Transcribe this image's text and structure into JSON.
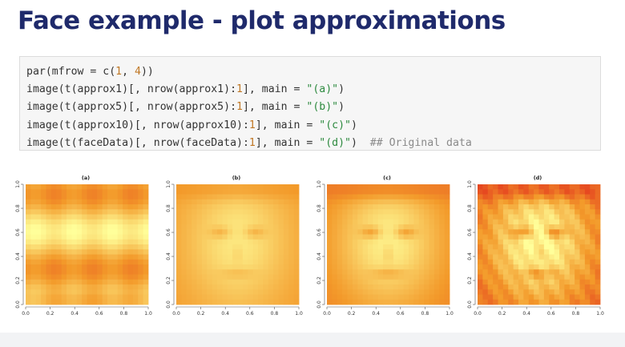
{
  "slide": {
    "title": "Face example - plot approximations"
  },
  "code": {
    "lines": [
      [
        {
          "t": "par(mfrow = c(",
          "c": "plain"
        },
        {
          "t": "1",
          "c": "num"
        },
        {
          "t": ", ",
          "c": "plain"
        },
        {
          "t": "4",
          "c": "num"
        },
        {
          "t": "))",
          "c": "plain"
        }
      ],
      [
        {
          "t": "image(t(approx1)[, nrow(approx1):",
          "c": "plain"
        },
        {
          "t": "1",
          "c": "num"
        },
        {
          "t": "], main = ",
          "c": "plain"
        },
        {
          "t": "\"(a)\"",
          "c": "str"
        },
        {
          "t": ")",
          "c": "plain"
        }
      ],
      [
        {
          "t": "image(t(approx5)[, nrow(approx5):",
          "c": "plain"
        },
        {
          "t": "1",
          "c": "num"
        },
        {
          "t": "], main = ",
          "c": "plain"
        },
        {
          "t": "\"(b)\"",
          "c": "str"
        },
        {
          "t": ")",
          "c": "plain"
        }
      ],
      [
        {
          "t": "image(t(approx10)[, nrow(approx10):",
          "c": "plain"
        },
        {
          "t": "1",
          "c": "num"
        },
        {
          "t": "], main = ",
          "c": "plain"
        },
        {
          "t": "\"(c)\"",
          "c": "str"
        },
        {
          "t": ")",
          "c": "plain"
        }
      ],
      [
        {
          "t": "image(t(faceData)[, nrow(faceData):",
          "c": "plain"
        },
        {
          "t": "1",
          "c": "num"
        },
        {
          "t": "], main = ",
          "c": "plain"
        },
        {
          "t": "\"(d)\"",
          "c": "str"
        },
        {
          "t": ")  ",
          "c": "plain"
        },
        {
          "t": "## Original data",
          "c": "cmt"
        }
      ]
    ]
  },
  "chart_data": [
    {
      "type": "heatmap",
      "title": "(a)",
      "xlim": [
        0,
        1
      ],
      "ylim": [
        0,
        1
      ],
      "x_ticks": [
        "0.0",
        "0.2",
        "0.4",
        "0.6",
        "0.8",
        "1.0"
      ],
      "y_ticks": [
        "0.0",
        "0.2",
        "0.4",
        "0.6",
        "0.8",
        "1.0"
      ]
    },
    {
      "type": "heatmap",
      "title": "(b)",
      "xlim": [
        0,
        1
      ],
      "ylim": [
        0,
        1
      ],
      "x_ticks": [
        "0.0",
        "0.2",
        "0.4",
        "0.6",
        "0.8",
        "1.0"
      ],
      "y_ticks": [
        "0.0",
        "0.2",
        "0.4",
        "0.6",
        "0.8",
        "1.0"
      ]
    },
    {
      "type": "heatmap",
      "title": "(c)",
      "xlim": [
        0,
        1
      ],
      "ylim": [
        0,
        1
      ],
      "x_ticks": [
        "0.0",
        "0.2",
        "0.4",
        "0.6",
        "0.8",
        "1.0"
      ],
      "y_ticks": [
        "0.0",
        "0.2",
        "0.4",
        "0.6",
        "0.8",
        "1.0"
      ]
    },
    {
      "type": "heatmap",
      "title": "(d)",
      "xlim": [
        0,
        1
      ],
      "ylim": [
        0,
        1
      ],
      "x_ticks": [
        "0.0",
        "0.2",
        "0.4",
        "0.6",
        "0.8",
        "1.0"
      ],
      "y_ticks": [
        "0.0",
        "0.2",
        "0.4",
        "0.6",
        "0.8",
        "1.0"
      ]
    }
  ],
  "colors": {
    "title": "#1f2a6b",
    "heat_low": "#e0261c",
    "heat_mid": "#f39a2a",
    "heat_high": "#ffff9a"
  }
}
